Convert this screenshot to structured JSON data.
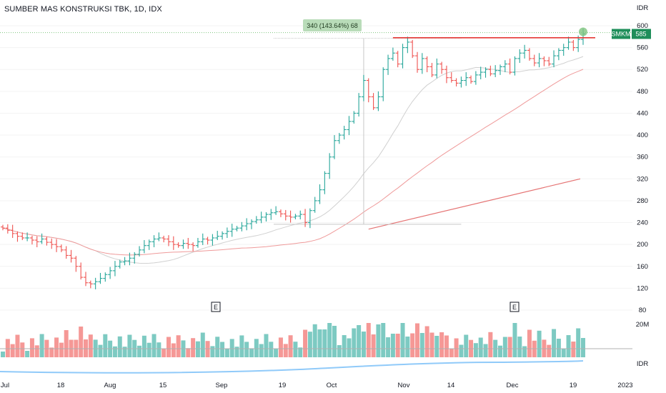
{
  "header": {
    "title": "SUMBER MAS KONSTRUKSI TBK, 1D, IDX"
  },
  "colors": {
    "up": "#26a69a",
    "down": "#ef5350",
    "resistance": "#e53935",
    "ma_long": "#e57373",
    "ma_mid": "#ef9a9a",
    "ma_short": "#d0d0d0",
    "volume_ma": "#b0b0b0",
    "blue_line": "#90caf9",
    "tag_bg": "#1e8e5a",
    "measure_bg": "#b9dcb9"
  },
  "price_axis": {
    "currency": "IDR",
    "ticks": [
      600,
      560,
      520,
      480,
      440,
      400,
      360,
      320,
      280,
      240,
      200,
      160,
      120,
      80
    ]
  },
  "volume_axis": {
    "top_label": "20M",
    "bottom_label": "IDR"
  },
  "x_axis": {
    "labels": [
      "Jul",
      "18",
      "Aug",
      "15",
      "Sep",
      "19",
      "Oct",
      "Nov",
      "14",
      "Dec",
      "19",
      "2023"
    ]
  },
  "last_price": {
    "symbol": "SMKM",
    "value": "585"
  },
  "measure": {
    "text": "340 (143.64%) 68"
  },
  "earnings": [
    {
      "label": "E"
    },
    {
      "label": "E"
    }
  ],
  "chart_data": {
    "type": "ohlc",
    "title": "SUMBER MAS KONSTRUKSI TBK, 1D, IDX",
    "ylabel": "IDR",
    "ylim": [
      80,
      600
    ],
    "y_ticks": [
      600,
      560,
      520,
      480,
      440,
      400,
      360,
      320,
      280,
      240,
      200,
      160,
      120,
      80
    ],
    "x_labels": [
      "Jul",
      "18",
      "Aug",
      "15",
      "Sep",
      "19",
      "Oct",
      "Nov",
      "14",
      "Dec",
      "19",
      "2023"
    ],
    "close": [
      230,
      226,
      220,
      215,
      212,
      212,
      208,
      205,
      210,
      204,
      200,
      196,
      190,
      180,
      175,
      160,
      140,
      130,
      128,
      132,
      138,
      145,
      152,
      160,
      168,
      170,
      175,
      182,
      190,
      198,
      205,
      210,
      212,
      210,
      205,
      200,
      198,
      202,
      200,
      198,
      205,
      210,
      208,
      212,
      215,
      220,
      224,
      228,
      230,
      234,
      238,
      242,
      245,
      250,
      255,
      258,
      260,
      256,
      252,
      250,
      252,
      255,
      240,
      262,
      280,
      300,
      330,
      360,
      390,
      400,
      410,
      425,
      440,
      470,
      500,
      470,
      450,
      470,
      520,
      540,
      550,
      530,
      560,
      570,
      545,
      520,
      540,
      525,
      510,
      530,
      520,
      505,
      500,
      495,
      500,
      505,
      498,
      510,
      515,
      520,
      512,
      518,
      525,
      530,
      515,
      540,
      550,
      555,
      540,
      532,
      540,
      536,
      530,
      545,
      555,
      560,
      570,
      560,
      575,
      585
    ],
    "trend_start_index": 62,
    "resistance": 578,
    "measure_from": 237,
    "measure_to": 577,
    "measure_bars": 68,
    "last": 585,
    "volume_scale": "20M"
  }
}
